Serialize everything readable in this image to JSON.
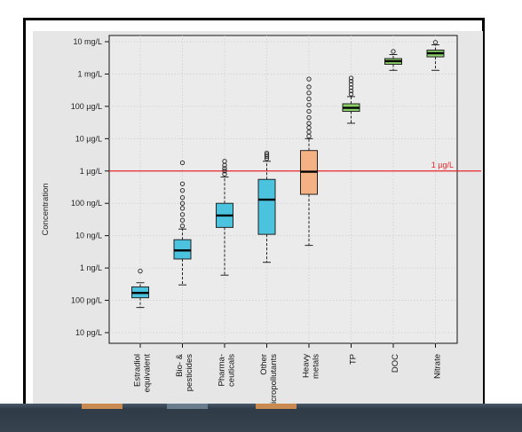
{
  "chart_data": {
    "type": "box",
    "title": "",
    "xlabel": "",
    "ylabel": "Concentration",
    "y_scale": "log10",
    "y_unit": "µg/L",
    "ylim": [
      1e-05,
      10000
    ],
    "y_ticks": [
      {
        "value": 10000,
        "label": "10 mg/L"
      },
      {
        "value": 1000,
        "label": "1 mg/L"
      },
      {
        "value": 100,
        "label": "100 µg/L"
      },
      {
        "value": 10,
        "label": "10 µg/L"
      },
      {
        "value": 1,
        "label": "1 µg/L"
      },
      {
        "value": 0.1,
        "label": "100 ng/L"
      },
      {
        "value": 0.01,
        "label": "10 ng/L"
      },
      {
        "value": 0.001,
        "label": "1 ng/L"
      },
      {
        "value": 0.0001,
        "label": "100 pg/L"
      },
      {
        "value": 1e-05,
        "label": "10 pg/L"
      }
    ],
    "reference_line": {
      "value": 1,
      "label": "1 µg/L",
      "color": "#e8262b"
    },
    "grid": true,
    "background": "#e6e6e6",
    "boxes": [
      {
        "label_lines": [
          "Estradiol",
          "equivalent"
        ],
        "color": "#4cc3de",
        "min": 6e-05,
        "q1": 0.00012,
        "median": 0.00017,
        "q3": 0.00026,
        "max": 0.00035,
        "outliers": [
          0.0008
        ]
      },
      {
        "label_lines": [
          "Bio- &",
          "pesticides"
        ],
        "color": "#4cc3de",
        "min": 0.0003,
        "q1": 0.0019,
        "median": 0.0035,
        "q3": 0.0075,
        "max": 0.016,
        "outliers": [
          0.02,
          0.03,
          0.045,
          0.07,
          0.1,
          0.15,
          0.25,
          0.4,
          1.8
        ]
      },
      {
        "label_lines": [
          "Pharma-",
          "ceuticals"
        ],
        "color": "#4cc3de",
        "min": 0.0006,
        "q1": 0.018,
        "median": 0.042,
        "q3": 0.1,
        "max": 0.65,
        "outliers": [
          0.8,
          1.0,
          1.2,
          1.5,
          2.0
        ]
      },
      {
        "label_lines": [
          "Other",
          "micropollutants"
        ],
        "color": "#4cc3de",
        "min": 0.0015,
        "q1": 0.011,
        "median": 0.13,
        "q3": 0.55,
        "max": 2.0,
        "outliers": [
          2.4,
          2.8,
          3.2,
          3.6
        ]
      },
      {
        "label_lines": [
          "Heavy",
          "metals"
        ],
        "color": "#f4b183",
        "min": 0.005,
        "q1": 0.19,
        "median": 0.95,
        "q3": 4.3,
        "max": 10,
        "outliers": [
          12,
          16,
          22,
          30,
          45,
          70,
          110,
          170,
          260,
          400,
          700
        ]
      },
      {
        "label_lines": [
          "TP"
        ],
        "color": "#8ed06b",
        "min": 30,
        "q1": 70,
        "median": 90,
        "q3": 120,
        "max": 200,
        "outliers": [
          240,
          300,
          380,
          480,
          600,
          750
        ]
      },
      {
        "label_lines": [
          "DOC"
        ],
        "color": "#8ed06b",
        "min": 1300,
        "q1": 2000,
        "median": 2500,
        "q3": 3000,
        "max": 4000,
        "outliers": [
          5000
        ]
      },
      {
        "label_lines": [
          "Nitrate"
        ],
        "color": "#8ed06b",
        "min": 1300,
        "q1": 3400,
        "median": 4400,
        "q3": 5500,
        "max": 8000,
        "outliers": [
          9500
        ]
      }
    ]
  },
  "bottom_strip": {
    "accent_colors": [
      "#c98a52",
      "#6a7d8f",
      "#c98a52"
    ]
  }
}
